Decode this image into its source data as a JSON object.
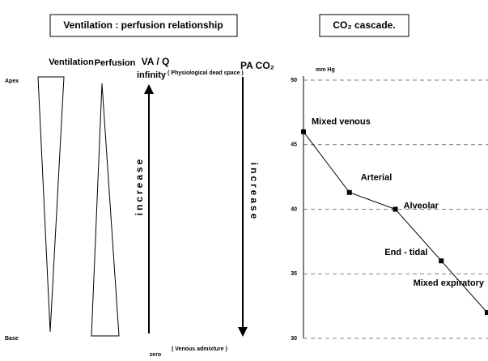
{
  "diagram": {
    "title": "Ventilation : perfusion relationship",
    "ventilation": "Ventilation",
    "perfusion": "Perfusion",
    "vaq": "VA / Q",
    "infinity": "infinity",
    "dead_space": "( Physiological dead space )",
    "paco2": "PA CO₂",
    "apex": "Apex",
    "base": "Base",
    "increase_left": "increase",
    "increase_right": "increase",
    "zero": "zero",
    "venous_admixture": "( Venous admixture )"
  },
  "chart_data": {
    "type": "line",
    "title": "CO₂ cascade.",
    "ylabel": "mm Hg",
    "categories": [
      "Mixed venous",
      "Arterial",
      "Alveolar",
      "End - tidal",
      "Mixed expiratory"
    ],
    "values": [
      46,
      41.3,
      40,
      36,
      32
    ],
    "color": "#000000",
    "ylim": [
      30,
      50
    ],
    "yticks": [
      30,
      35,
      40,
      45,
      50
    ],
    "grid": true
  }
}
